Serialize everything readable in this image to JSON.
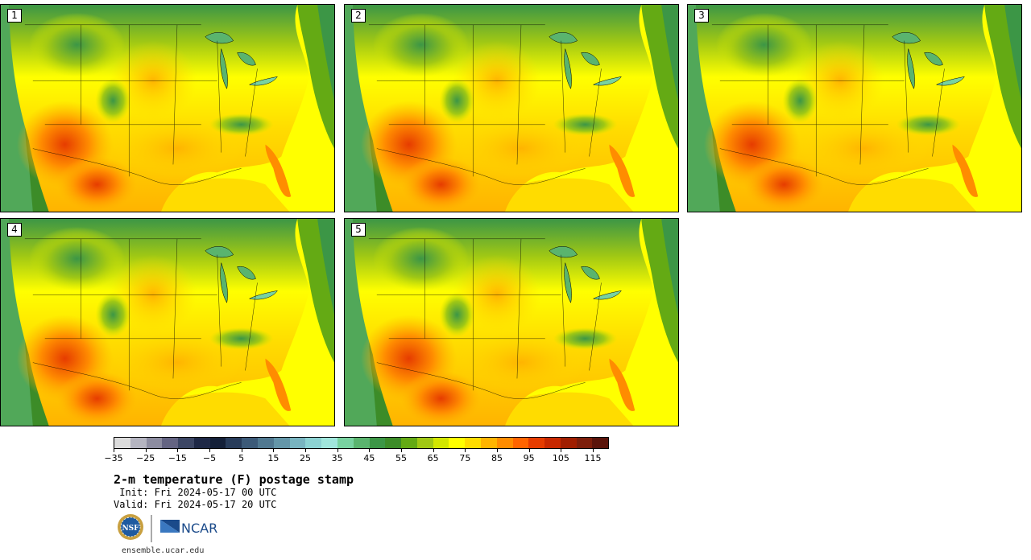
{
  "stamps": [
    {
      "label": "1"
    },
    {
      "label": "2"
    },
    {
      "label": "3"
    },
    {
      "label": "4"
    },
    {
      "label": "5"
    }
  ],
  "colorbar": {
    "colors": [
      "#dcdcdc",
      "#b4b4c0",
      "#8c8ca0",
      "#646482",
      "#3c4664",
      "#1e2846",
      "#142038",
      "#283c5a",
      "#3c5a78",
      "#507890",
      "#6496a8",
      "#78b4c0",
      "#8cd2d2",
      "#a0e6dc",
      "#78d2a0",
      "#5ab46e",
      "#3c9646",
      "#3c8c28",
      "#64aa14",
      "#a0c814",
      "#d2e600",
      "#ffff00",
      "#ffdc00",
      "#ffb400",
      "#ff8c00",
      "#ff6400",
      "#e63c00",
      "#c82800",
      "#a01e00",
      "#7d1e0a",
      "#5a140a"
    ],
    "tick_labels": [
      "−35",
      "−25",
      "−15",
      "−5",
      "5",
      "15",
      "25",
      "35",
      "45",
      "55",
      "65",
      "75",
      "85",
      "95",
      "105",
      "115"
    ]
  },
  "title": "2-m temperature (F) postage stamp",
  "init_line": " Init: Fri 2024-05-17 00 UTC",
  "valid_line": "Valid: Fri 2024-05-17 20 UTC",
  "logos": {
    "nsf": "NSF",
    "ncar": "NCAR"
  },
  "url": "ensemble.ucar.edu"
}
